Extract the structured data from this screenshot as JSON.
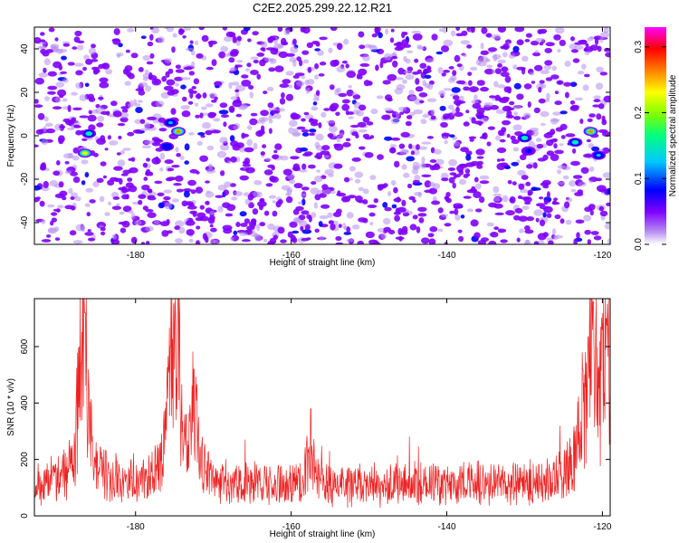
{
  "title": "C2E2.2025.299.22.12.R21",
  "chart_data": [
    {
      "type": "heatmap",
      "xlabel": "Height of straight line (km)",
      "ylabel": "Frequency (Hz)",
      "xlim": [
        -193,
        -119
      ],
      "ylim": [
        -50,
        50
      ],
      "xticks": [
        -180,
        -160,
        -140,
        -120
      ],
      "yticks": [
        -40,
        -20,
        0,
        20,
        40
      ],
      "colorbar": {
        "label": "Normalized spectral amplitude",
        "range": [
          0,
          0.33
        ],
        "ticks": [
          0,
          0.1,
          0.2,
          0.3
        ],
        "colormap": [
          "#ffffff",
          "#b58cf0",
          "#7f00ff",
          "#0000ff",
          "#00c8ff",
          "#00ff80",
          "#80ff00",
          "#ffff00",
          "#ff8000",
          "#ff0000",
          "#ff00ff"
        ]
      },
      "peaks": [
        {
          "x": -186.5,
          "y": -8,
          "v": 0.28
        },
        {
          "x": -186,
          "y": 1,
          "v": 0.2
        },
        {
          "x": -174.5,
          "y": 2,
          "v": 0.31
        },
        {
          "x": -175.5,
          "y": 6,
          "v": 0.14
        },
        {
          "x": -176,
          "y": -5,
          "v": 0.12
        },
        {
          "x": -130,
          "y": -1,
          "v": 0.18
        },
        {
          "x": -129.5,
          "y": -7,
          "v": 0.1
        },
        {
          "x": -121.5,
          "y": 2,
          "v": 0.3
        },
        {
          "x": -123.5,
          "y": -3,
          "v": 0.2
        },
        {
          "x": -120.5,
          "y": -9,
          "v": 0.15
        }
      ]
    },
    {
      "type": "line",
      "xlabel": "Height of straight line (km)",
      "ylabel": "SNR (10 * v/v)",
      "xlim": [
        -193,
        -119
      ],
      "ylim": [
        0,
        770
      ],
      "xticks": [
        -180,
        -160,
        -140,
        -120
      ],
      "yticks": [
        0,
        200,
        400,
        600
      ],
      "color": "#ee2222",
      "baseline": 130,
      "spikes": [
        {
          "x": -186.5,
          "y": 720
        },
        {
          "x": -187,
          "y": 540
        },
        {
          "x": -174.5,
          "y": 770
        },
        {
          "x": -175.5,
          "y": 600
        },
        {
          "x": -172.5,
          "y": 520
        },
        {
          "x": -157.5,
          "y": 380
        },
        {
          "x": -121.2,
          "y": 760
        },
        {
          "x": -119.5,
          "y": 700
        },
        {
          "x": -122.5,
          "y": 520
        }
      ]
    }
  ]
}
